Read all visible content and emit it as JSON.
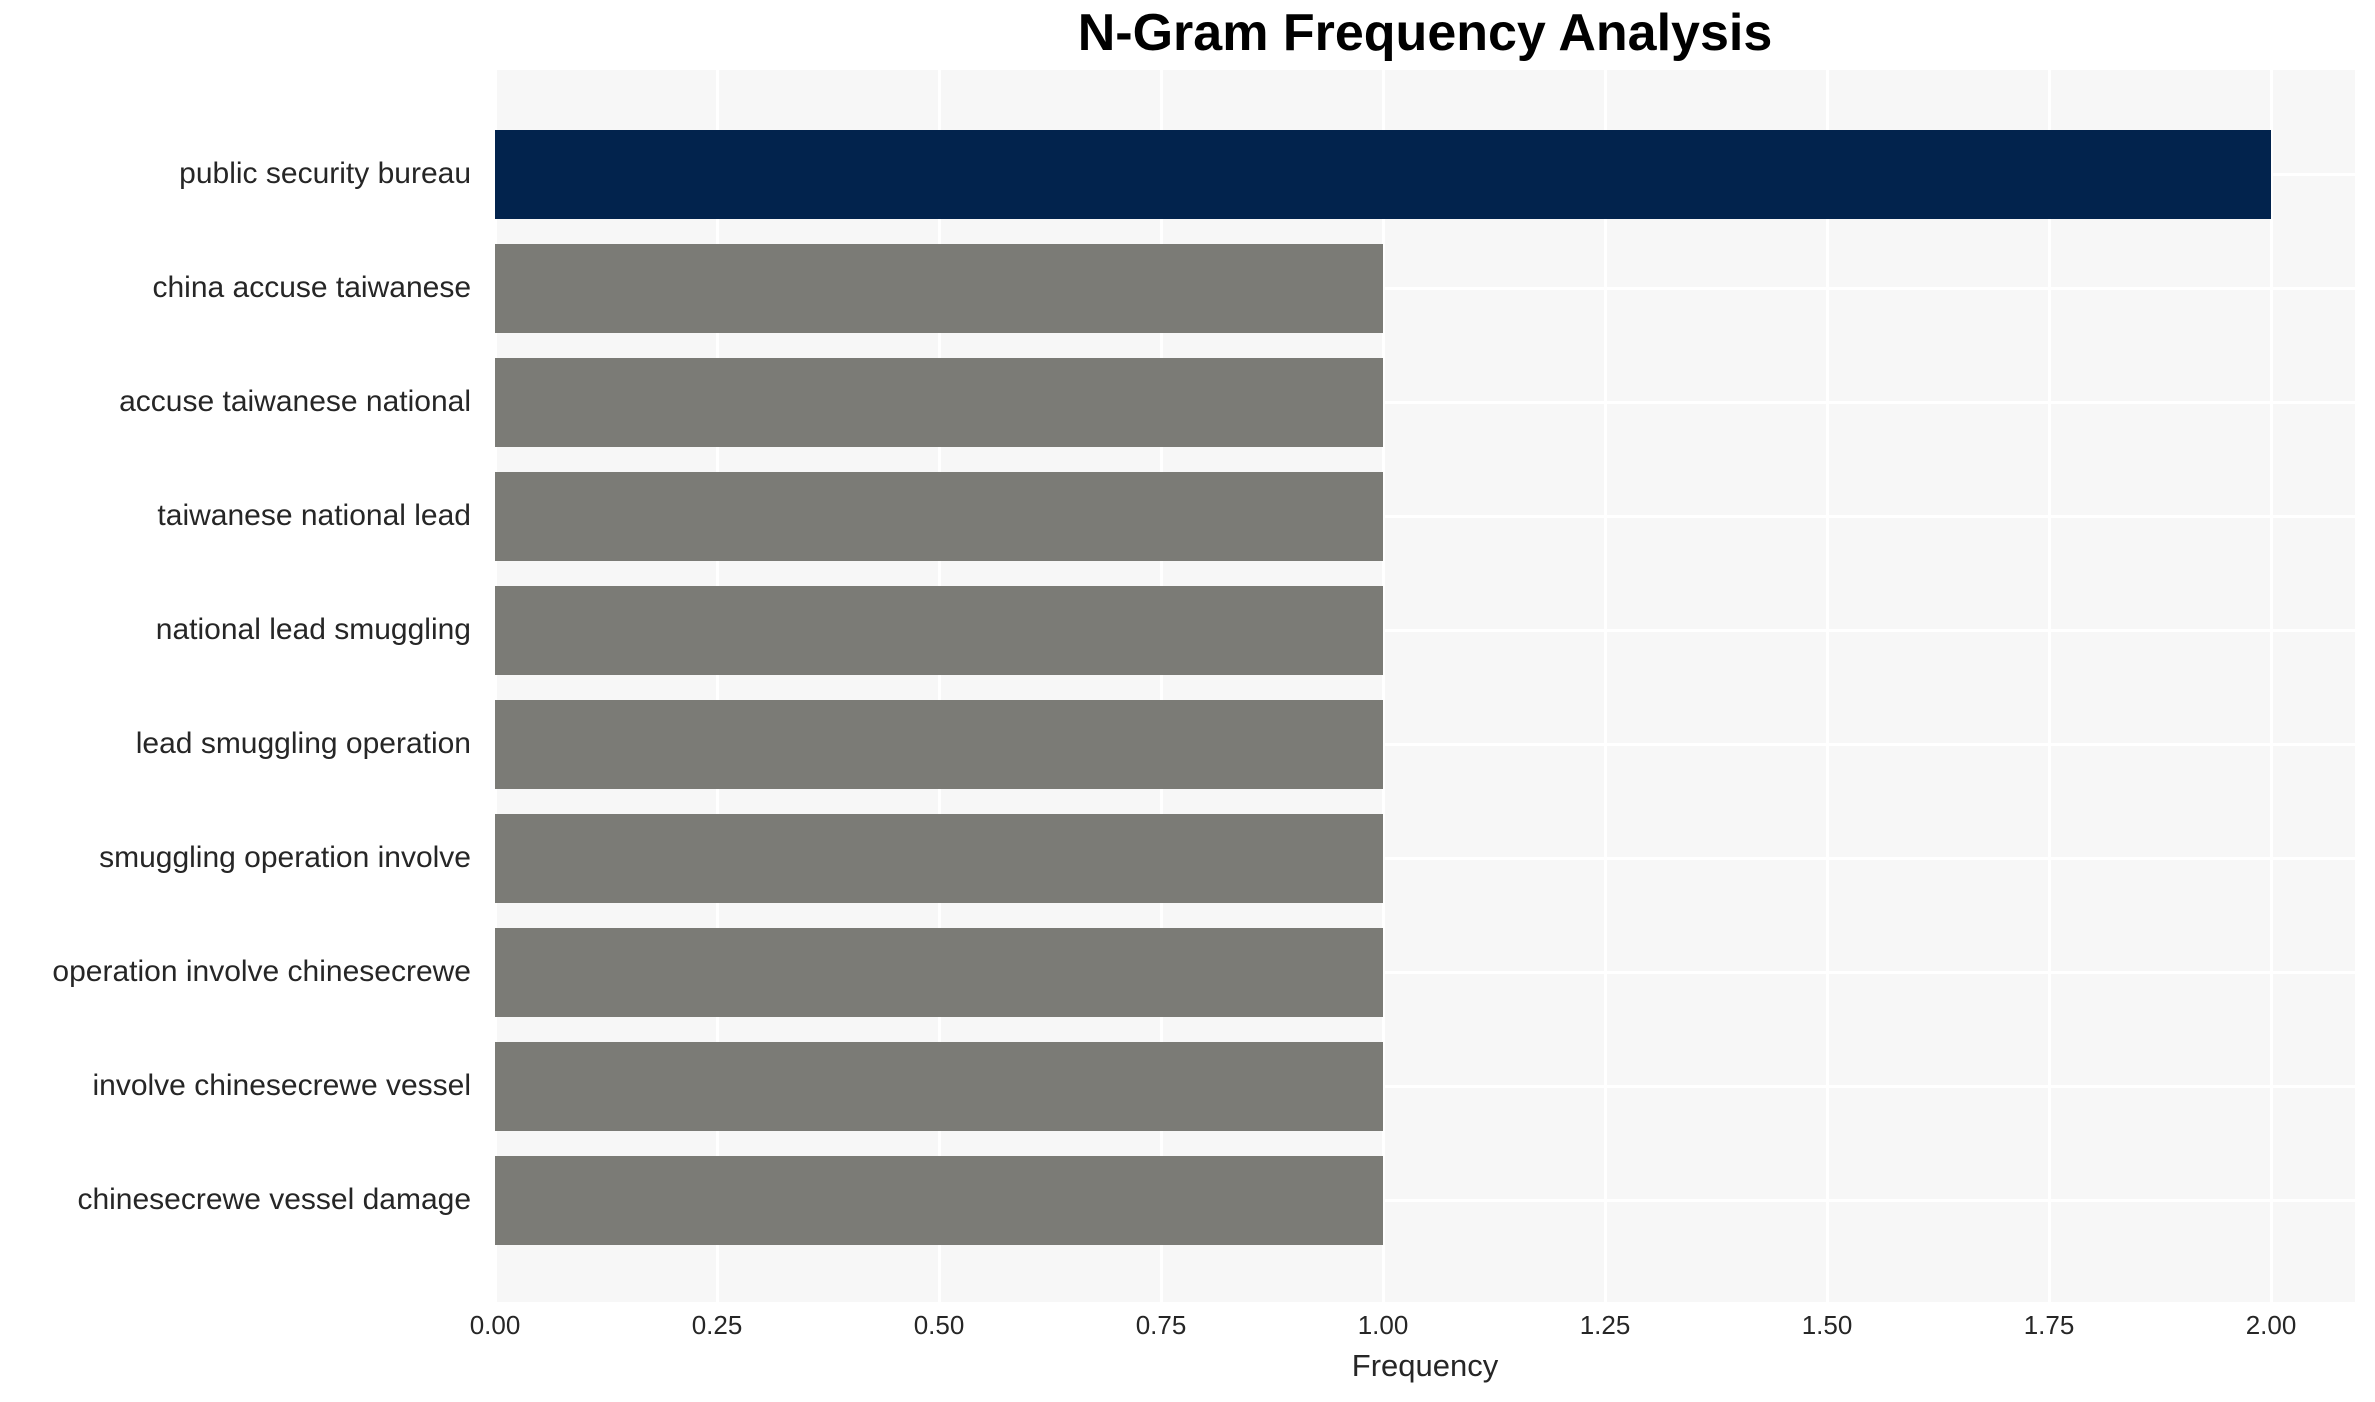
{
  "chart_data": {
    "type": "bar",
    "orientation": "horizontal",
    "title": "N-Gram Frequency Analysis",
    "xlabel": "Frequency",
    "ylabel": "",
    "categories": [
      "public security bureau",
      "china accuse taiwanese",
      "accuse taiwanese national",
      "taiwanese national lead",
      "national lead smuggling",
      "lead smuggling operation",
      "smuggling operation involve",
      "operation involve chinesecrewe",
      "involve chinesecrewe vessel",
      "chinesecrewe vessel damage"
    ],
    "values": [
      2.0,
      1.0,
      1.0,
      1.0,
      1.0,
      1.0,
      1.0,
      1.0,
      1.0,
      1.0
    ],
    "bar_colors": [
      "#02234d",
      "#7b7b76",
      "#7b7b76",
      "#7b7b76",
      "#7b7b76",
      "#7b7b76",
      "#7b7b76",
      "#7b7b76",
      "#7b7b76",
      "#7b7b76"
    ],
    "xlim": [
      0,
      2.094
    ],
    "xticks": [
      0.0,
      0.25,
      0.5,
      0.75,
      1.0,
      1.25,
      1.5,
      1.75,
      2.0
    ],
    "xtick_labels": [
      "0.00",
      "0.25",
      "0.50",
      "0.75",
      "1.00",
      "1.25",
      "1.50",
      "1.75",
      "2.00"
    ],
    "legend": "none",
    "grid": "white major gridlines on light gray panel",
    "colors": {
      "highlight_bar": "#02234d",
      "default_bar": "#7b7b76",
      "panel_background": "#f7f7f7",
      "gridline": "#ffffff",
      "tick_text": "#262626",
      "title_text": "#000000"
    }
  }
}
